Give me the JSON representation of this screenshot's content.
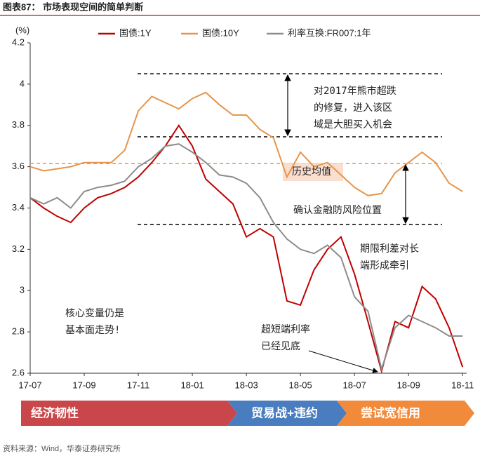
{
  "chart_data": {
    "type": "line",
    "title": "图表87：  市场表现空间的简单判断",
    "y_unit": "(%)",
    "source": "资料来源：Wind，华泰证券研究所",
    "legend": "top",
    "x": [
      0,
      0.5,
      1,
      1.5,
      2,
      2.5,
      3,
      3.5,
      4,
      4.5,
      5,
      5.5,
      6,
      6.5,
      7,
      7.5,
      8,
      8.5,
      9,
      9.5,
      10,
      10.5,
      11,
      11.5,
      12,
      12.5,
      13,
      13.5,
      14,
      14.5,
      15,
      15.5,
      16
    ],
    "xlim": [
      0,
      16.15
    ],
    "xticks": [
      {
        "value": 0,
        "label": "17-07"
      },
      {
        "value": 2,
        "label": "17-09"
      },
      {
        "value": 4,
        "label": "17-11"
      },
      {
        "value": 6,
        "label": "18-01"
      },
      {
        "value": 8,
        "label": "18-03"
      },
      {
        "value": 10,
        "label": "18-05"
      },
      {
        "value": 12,
        "label": "18-07"
      },
      {
        "value": 14,
        "label": "18-09"
      },
      {
        "value": 16,
        "label": "18-11"
      }
    ],
    "ylim": [
      2.6,
      4.2
    ],
    "yticks": [
      2.6,
      2.8,
      3,
      3.2,
      3.4,
      3.6,
      3.8,
      4,
      4.2
    ],
    "series": [
      {
        "name": "国债:1Y",
        "color": "#c00000",
        "values": [
          3.45,
          3.4,
          3.36,
          3.33,
          3.4,
          3.45,
          3.47,
          3.5,
          3.55,
          3.62,
          3.7,
          3.8,
          3.7,
          3.54,
          3.48,
          3.42,
          3.26,
          3.3,
          3.26,
          2.95,
          2.93,
          3.1,
          3.2,
          3.26,
          3.08,
          2.85,
          2.61,
          2.85,
          2.82,
          3.02,
          2.96,
          2.82,
          2.63
        ]
      },
      {
        "name": "国债:10Y",
        "color": "#e8944a",
        "values": [
          3.6,
          3.58,
          3.59,
          3.6,
          3.62,
          3.62,
          3.62,
          3.68,
          3.87,
          3.94,
          3.91,
          3.88,
          3.93,
          3.96,
          3.9,
          3.85,
          3.85,
          3.78,
          3.74,
          3.55,
          3.67,
          3.6,
          3.62,
          3.56,
          3.5,
          3.46,
          3.47,
          3.57,
          3.62,
          3.67,
          3.62,
          3.52,
          3.48
        ]
      },
      {
        "name": "利率互换:FR007:1年",
        "color": "#8c8c8c",
        "values": [
          3.45,
          3.42,
          3.45,
          3.4,
          3.48,
          3.5,
          3.51,
          3.53,
          3.6,
          3.64,
          3.7,
          3.71,
          3.67,
          3.62,
          3.56,
          3.55,
          3.52,
          3.45,
          3.33,
          3.25,
          3.2,
          3.18,
          3.22,
          3.16,
          2.97,
          2.9,
          2.62,
          2.82,
          2.88,
          2.85,
          2.82,
          2.78,
          2.78
        ]
      }
    ],
    "reference_lines": [
      {
        "value": 4.05,
        "color": "#000000"
      },
      {
        "value": 3.745,
        "color": "#000000"
      },
      {
        "value": 3.615,
        "color": "#e8944a"
      },
      {
        "value": 3.32,
        "color": "#000000"
      }
    ],
    "annotations": [
      {
        "lines": [
          "对2017年熊市超跌",
          "的修复，进入该区",
          "域是大胆买入机会"
        ]
      },
      {
        "lines": [
          "历史均值"
        ]
      },
      {
        "lines": [
          "确认金融防风险位置"
        ]
      },
      {
        "lines": [
          "期限利差对长",
          "端形成牵引"
        ]
      },
      {
        "lines": [
          "核心变量仍是",
          "基本面走势!"
        ]
      },
      {
        "lines": [
          "超短端利率",
          "已经见底"
        ]
      }
    ],
    "phases": [
      {
        "label": "经济韧性",
        "color": "#c9474a"
      },
      {
        "label": "贸易战+违约",
        "color": "#4a7dbf"
      },
      {
        "label": "尝试宽信用",
        "color": "#f28a3c"
      }
    ]
  }
}
